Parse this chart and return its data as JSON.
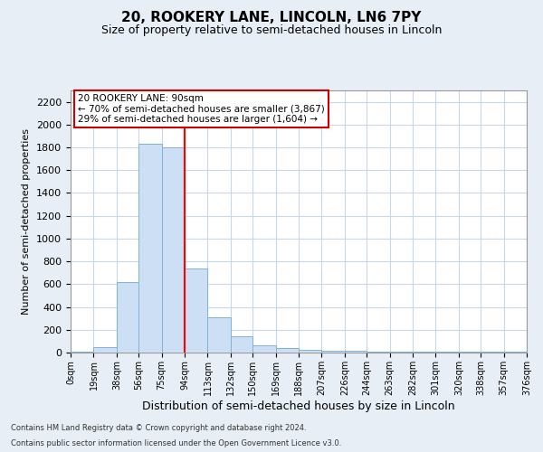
{
  "title": "20, ROOKERY LANE, LINCOLN, LN6 7PY",
  "subtitle": "Size of property relative to semi-detached houses in Lincoln",
  "xlabel": "Distribution of semi-detached houses by size in Lincoln",
  "ylabel": "Number of semi-detached properties",
  "footnote1": "Contains HM Land Registry data © Crown copyright and database right 2024.",
  "footnote2": "Contains public sector information licensed under the Open Government Licence v3.0.",
  "bar_edges": [
    0,
    19,
    38,
    56,
    75,
    94,
    113,
    132,
    150,
    169,
    188,
    207,
    226,
    244,
    263,
    282,
    301,
    320,
    338,
    357,
    376
  ],
  "bar_heights": [
    8,
    50,
    620,
    1835,
    1800,
    740,
    310,
    140,
    62,
    40,
    22,
    14,
    14,
    8,
    4,
    4,
    4,
    4,
    4,
    4
  ],
  "tick_labels": [
    "0sqm",
    "19sqm",
    "38sqm",
    "56sqm",
    "75sqm",
    "94sqm",
    "113sqm",
    "132sqm",
    "150sqm",
    "169sqm",
    "188sqm",
    "207sqm",
    "226sqm",
    "244sqm",
    "263sqm",
    "282sqm",
    "301sqm",
    "320sqm",
    "338sqm",
    "357sqm",
    "376sqm"
  ],
  "bar_color": "#ccdff5",
  "bar_edge_color": "#7fb3d9",
  "grid_color": "#c8d8e8",
  "red_line_x": 94,
  "annotation_text_line1": "20 ROOKERY LANE: 90sqm",
  "annotation_text_line2": "← 70% of semi-detached houses are smaller (3,867)",
  "annotation_text_line3": "29% of semi-detached houses are larger (1,604) →",
  "annotation_box_color": "#ffffff",
  "annotation_box_edge_color": "#cc0000",
  "ylim": [
    0,
    2300
  ],
  "yticks": [
    0,
    200,
    400,
    600,
    800,
    1000,
    1200,
    1400,
    1600,
    1800,
    2000,
    2200
  ],
  "background_color": "#e8eef5",
  "plot_bg_color": "#ffffff",
  "title_fontsize": 11,
  "subtitle_fontsize": 9
}
